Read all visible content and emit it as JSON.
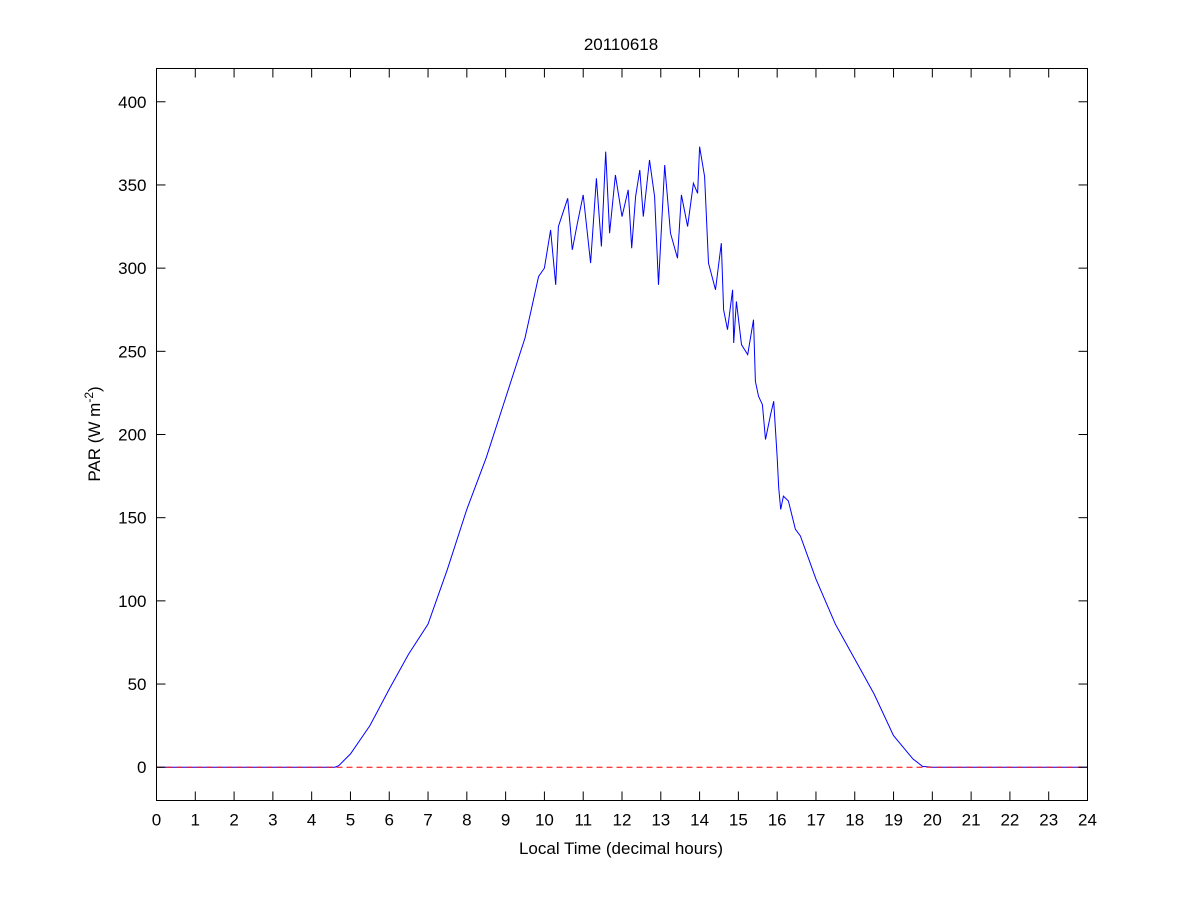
{
  "chart_data": {
    "type": "line",
    "title": "20110618",
    "xlabel": "Local Time (decimal hours)",
    "ylabel": "PAR (W m",
    "ylabel_superscript": "-2",
    "ylabel_suffix": ")",
    "xlim": [
      0,
      24
    ],
    "ylim": [
      -20,
      420
    ],
    "xticks": [
      0,
      1,
      2,
      3,
      4,
      5,
      6,
      7,
      8,
      9,
      10,
      11,
      12,
      13,
      14,
      15,
      16,
      17,
      18,
      19,
      20,
      21,
      22,
      23,
      24
    ],
    "yticks": [
      0,
      50,
      100,
      150,
      200,
      250,
      300,
      350,
      400
    ],
    "grid": false,
    "series": [
      {
        "color": "#0000ff",
        "style": "solid",
        "x": [
          0,
          4.6,
          4.7,
          5.0,
          5.5,
          6.0,
          6.5,
          7.0,
          7.5,
          8.0,
          8.5,
          9.0,
          9.5,
          9.85,
          10.0,
          10.16,
          10.29,
          10.36,
          10.6,
          10.72,
          10.85,
          11.0,
          11.19,
          11.34,
          11.47,
          11.58,
          11.68,
          11.83,
          12.0,
          12.16,
          12.25,
          12.35,
          12.46,
          12.55,
          12.71,
          12.84,
          12.94,
          13.1,
          13.25,
          13.43,
          13.53,
          13.69,
          13.84,
          13.95,
          14.0,
          14.13,
          14.23,
          14.41,
          14.56,
          14.62,
          14.72,
          14.85,
          14.88,
          14.95,
          15.08,
          15.24,
          15.39,
          15.44,
          15.52,
          15.62,
          15.7,
          15.83,
          15.91,
          16.0,
          16.04,
          16.09,
          16.16,
          16.29,
          16.47,
          16.6,
          17.0,
          17.5,
          18.0,
          18.5,
          19.0,
          19.5,
          19.75,
          20.0,
          24
        ],
        "y": [
          0,
          0,
          1,
          8,
          25,
          47,
          68,
          86,
          119,
          155,
          186,
          222,
          258,
          295,
          300,
          323,
          290,
          325,
          342,
          311,
          327,
          344,
          303,
          354,
          313,
          370,
          321,
          356,
          331,
          347,
          312,
          343,
          359,
          331,
          365,
          343,
          290,
          362,
          321,
          306,
          344,
          325,
          351,
          345,
          373,
          355,
          303,
          287,
          315,
          275,
          263,
          287,
          255,
          280,
          254,
          248,
          269,
          232,
          223,
          218,
          197,
          212,
          220,
          186,
          168,
          155,
          163,
          160,
          143,
          139,
          113,
          86,
          65,
          44,
          19,
          5,
          0.5,
          0,
          0
        ]
      },
      {
        "color": "#ff0000",
        "style": "dashed",
        "x": [
          0,
          24
        ],
        "y": [
          0,
          0
        ]
      }
    ]
  }
}
